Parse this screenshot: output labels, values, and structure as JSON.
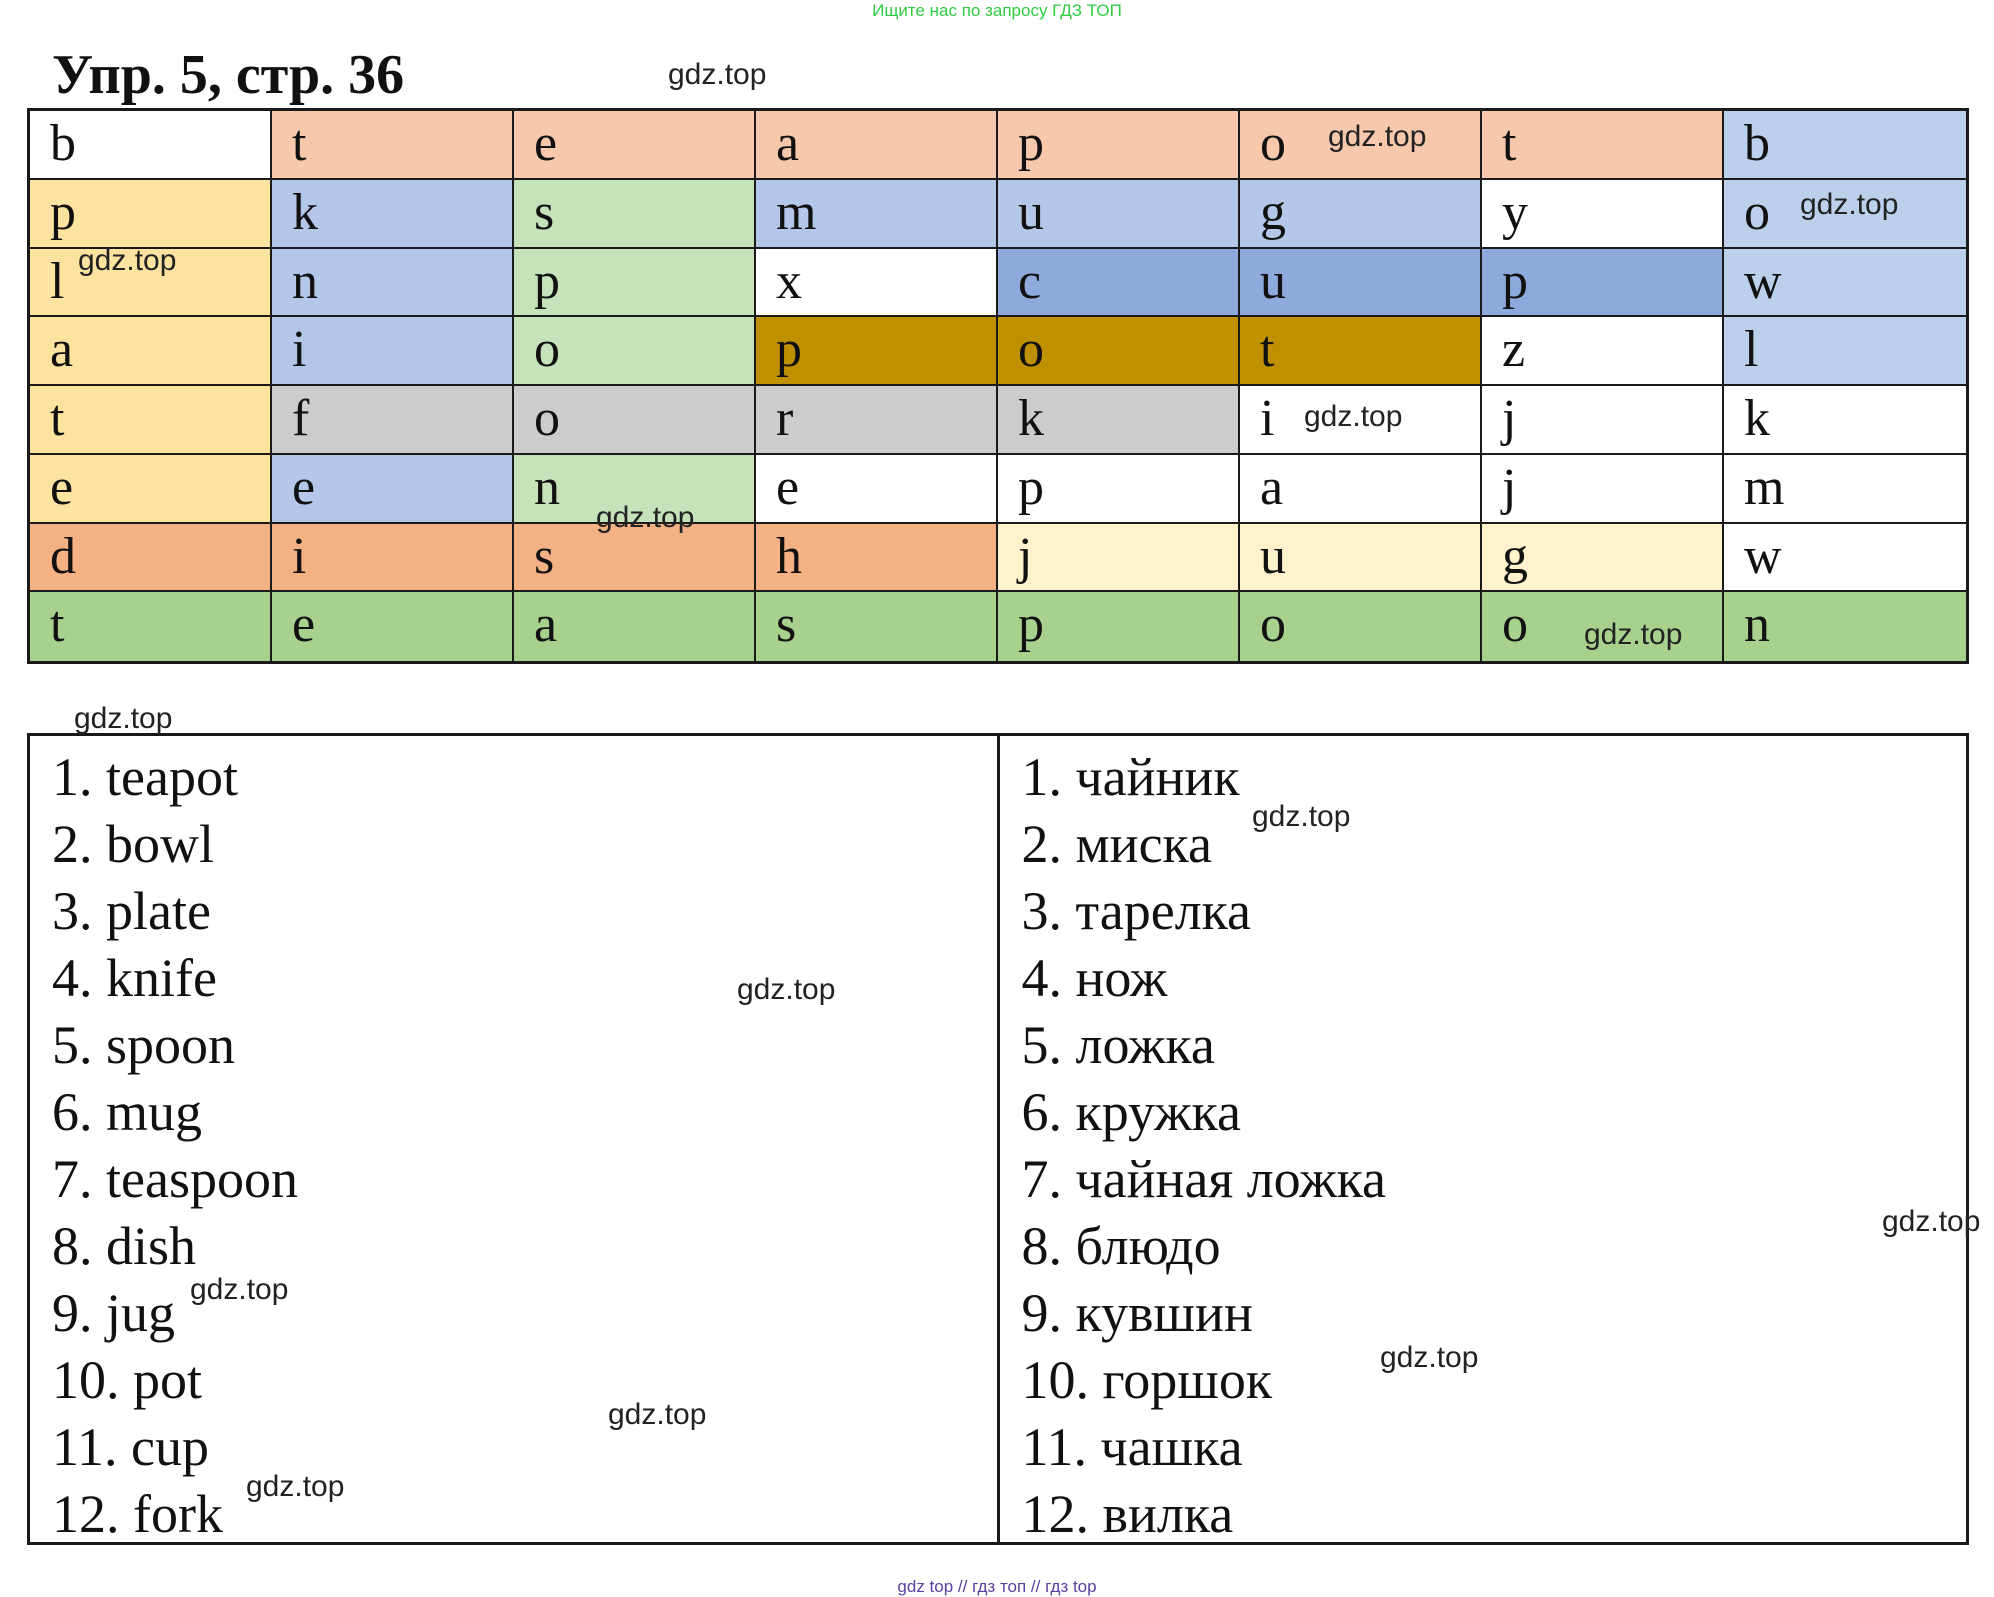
{
  "banner": "Ищите нас по запросу ГДЗ ТОП",
  "title": "Упр. 5, стр. 36",
  "watermark": "gdz.top",
  "grid": {
    "rows": [
      [
        {
          "l": "b",
          "c": "#ffffff"
        },
        {
          "l": "t",
          "c": "#f7c8ac"
        },
        {
          "l": "e",
          "c": "#f7c8ac"
        },
        {
          "l": "a",
          "c": "#f7c8ac"
        },
        {
          "l": "p",
          "c": "#f7c8ac"
        },
        {
          "l": "o",
          "c": "#f7c8ac"
        },
        {
          "l": "t",
          "c": "#f7c8ac"
        },
        {
          "l": "b",
          "c": "#bcd0ec"
        }
      ],
      [
        {
          "l": "p",
          "c": "#fde3a0"
        },
        {
          "l": "k",
          "c": "#b4c7e8"
        },
        {
          "l": "s",
          "c": "#c6e2bb"
        },
        {
          "l": "m",
          "c": "#b4c7e8"
        },
        {
          "l": "u",
          "c": "#b4c7e8"
        },
        {
          "l": "g",
          "c": "#b4c7e8"
        },
        {
          "l": "y",
          "c": "#ffffff"
        },
        {
          "l": "o",
          "c": "#bcd0ec"
        }
      ],
      [
        {
          "l": "l",
          "c": "#fde3a0"
        },
        {
          "l": "n",
          "c": "#b4c7e8"
        },
        {
          "l": "p",
          "c": "#c6e2bb"
        },
        {
          "l": "x",
          "c": "#ffffff"
        },
        {
          "l": "c",
          "c": "#8eaadc"
        },
        {
          "l": "u",
          "c": "#8eaadc"
        },
        {
          "l": "p",
          "c": "#8eaadc"
        },
        {
          "l": "w",
          "c": "#bcd0ec"
        }
      ],
      [
        {
          "l": "a",
          "c": "#fde3a0"
        },
        {
          "l": "i",
          "c": "#b4c7e8"
        },
        {
          "l": "o",
          "c": "#c6e2bb"
        },
        {
          "l": "p",
          "c": "#bf9000"
        },
        {
          "l": "o",
          "c": "#bf9000"
        },
        {
          "l": "t",
          "c": "#bf9000"
        },
        {
          "l": "z",
          "c": "#ffffff"
        },
        {
          "l": "l",
          "c": "#bcd0ec"
        }
      ],
      [
        {
          "l": "t",
          "c": "#fde3a0"
        },
        {
          "l": "f",
          "c": "#cccccc"
        },
        {
          "l": "o",
          "c": "#cccccc"
        },
        {
          "l": "r",
          "c": "#cccccc"
        },
        {
          "l": "k",
          "c": "#cccccc"
        },
        {
          "l": "i",
          "c": "#ffffff"
        },
        {
          "l": "j",
          "c": "#ffffff"
        },
        {
          "l": "k",
          "c": "#ffffff"
        }
      ],
      [
        {
          "l": "e",
          "c": "#fde3a0"
        },
        {
          "l": "e",
          "c": "#b4c7e8"
        },
        {
          "l": "n",
          "c": "#c6e2bb"
        },
        {
          "l": "e",
          "c": "#ffffff"
        },
        {
          "l": "p",
          "c": "#ffffff"
        },
        {
          "l": "a",
          "c": "#ffffff"
        },
        {
          "l": "j",
          "c": "#ffffff"
        },
        {
          "l": "m",
          "c": "#ffffff"
        }
      ],
      [
        {
          "l": "d",
          "c": "#f4b183"
        },
        {
          "l": "i",
          "c": "#f4b183"
        },
        {
          "l": "s",
          "c": "#f4b183"
        },
        {
          "l": "h",
          "c": "#f4b183"
        },
        {
          "l": "j",
          "c": "#fff2cc"
        },
        {
          "l": "u",
          "c": "#fff2cc"
        },
        {
          "l": "g",
          "c": "#fff2cc"
        },
        {
          "l": "w",
          "c": "#ffffff"
        }
      ],
      [
        {
          "l": "t",
          "c": "#a9d18e"
        },
        {
          "l": "e",
          "c": "#a9d18e"
        },
        {
          "l": "a",
          "c": "#a9d18e"
        },
        {
          "l": "s",
          "c": "#a9d18e"
        },
        {
          "l": "p",
          "c": "#a9d18e"
        },
        {
          "l": "o",
          "c": "#a9d18e"
        },
        {
          "l": "o",
          "c": "#a9d18e"
        },
        {
          "l": "n",
          "c": "#a9d18e"
        }
      ]
    ]
  },
  "english": [
    "1. teapot",
    "2. bowl",
    "3. plate",
    "4. knife",
    "5. spoon",
    "6. mug",
    "7. teaspoon",
    "8. dish",
    "9. jug",
    "10. pot",
    "11. cup",
    "12. fork"
  ],
  "russian": [
    "1. чайник",
    "2. миска",
    "3. тарелка",
    "4. нож",
    "5. ложка",
    "6. кружка",
    "7. чайная ложка",
    "8. блюдо",
    "9. кувшин",
    "10. горшок",
    "11. чашка",
    "12. вилка"
  ],
  "footer": "gdz top  //  гдз топ  //  гдз top"
}
